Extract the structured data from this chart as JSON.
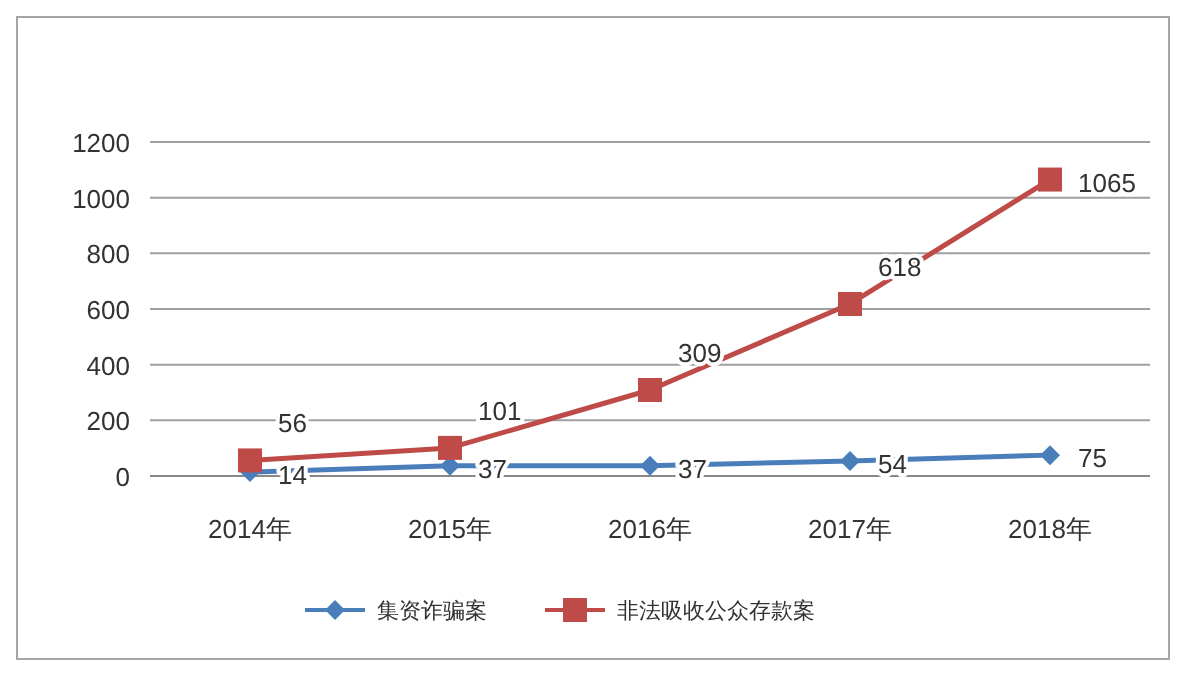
{
  "chart_data": {
    "type": "line",
    "categories": [
      "2014年",
      "2015年",
      "2016年",
      "2017年",
      "2018年"
    ],
    "series": [
      {
        "name": "集资诈骗案",
        "color": "#4a7ebb",
        "marker": "diamond",
        "values": [
          14,
          37,
          37,
          54,
          75
        ]
      },
      {
        "name": "非法吸收公众存款案",
        "color": "#be4b48",
        "marker": "square",
        "values": [
          56,
          101,
          309,
          618,
          1065
        ]
      }
    ],
    "ylim": [
      0,
      1200
    ],
    "yticks": [
      0,
      200,
      400,
      600,
      800,
      1000,
      1200
    ],
    "grid": "y",
    "legend": "bottom",
    "data_labels": true
  }
}
